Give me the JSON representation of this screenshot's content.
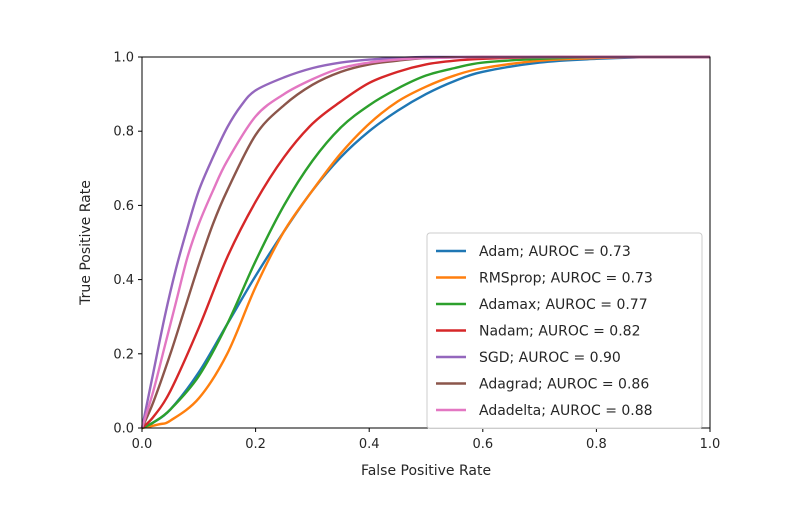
{
  "chart_data": {
    "type": "line",
    "title": "",
    "xlabel": "False Positive Rate",
    "ylabel": "True Positive Rate",
    "xlim": [
      0.0,
      1.0
    ],
    "ylim": [
      0.0,
      1.0
    ],
    "xticks": [
      "0.0",
      "0.2",
      "0.4",
      "0.6",
      "0.8",
      "1.0"
    ],
    "yticks": [
      "0.0",
      "0.2",
      "0.4",
      "0.6",
      "0.8",
      "1.0"
    ],
    "grid": false,
    "legend_position": "lower-right",
    "series": [
      {
        "name": "Adam; AUROC = 0.73",
        "color": "#1f77b4",
        "x": [
          0,
          0.02,
          0.05,
          0.1,
          0.15,
          0.2,
          0.25,
          0.3,
          0.35,
          0.4,
          0.45,
          0.5,
          0.55,
          0.6,
          0.7,
          0.8,
          0.9,
          1.0
        ],
        "y": [
          0,
          0.015,
          0.05,
          0.15,
          0.28,
          0.41,
          0.53,
          0.64,
          0.73,
          0.8,
          0.855,
          0.9,
          0.935,
          0.96,
          0.985,
          0.995,
          1.0,
          1.0
        ]
      },
      {
        "name": "RMSprop; AUROC = 0.73",
        "color": "#ff7f0e",
        "x": [
          0,
          0.03,
          0.05,
          0.1,
          0.15,
          0.2,
          0.25,
          0.3,
          0.35,
          0.4,
          0.45,
          0.5,
          0.55,
          0.6,
          0.7,
          0.8,
          0.9,
          1.0
        ],
        "y": [
          0,
          0.01,
          0.02,
          0.08,
          0.2,
          0.38,
          0.53,
          0.64,
          0.74,
          0.82,
          0.88,
          0.92,
          0.95,
          0.97,
          0.99,
          0.997,
          1.0,
          1.0
        ]
      },
      {
        "name": "Adamax; AUROC = 0.77",
        "color": "#2ca02c",
        "x": [
          0,
          0.02,
          0.05,
          0.1,
          0.15,
          0.2,
          0.25,
          0.3,
          0.35,
          0.4,
          0.45,
          0.5,
          0.55,
          0.6,
          0.7,
          0.8,
          0.9,
          1.0
        ],
        "y": [
          0,
          0.015,
          0.05,
          0.14,
          0.28,
          0.45,
          0.6,
          0.72,
          0.81,
          0.87,
          0.915,
          0.95,
          0.97,
          0.985,
          0.995,
          1.0,
          1.0,
          1.0
        ]
      },
      {
        "name": "Nadam; AUROC = 0.82",
        "color": "#d62728",
        "x": [
          0,
          0.02,
          0.05,
          0.1,
          0.15,
          0.2,
          0.25,
          0.3,
          0.35,
          0.4,
          0.45,
          0.5,
          0.55,
          0.6,
          0.7,
          0.8,
          0.9,
          1.0
        ],
        "y": [
          0,
          0.03,
          0.1,
          0.27,
          0.46,
          0.61,
          0.73,
          0.82,
          0.88,
          0.93,
          0.96,
          0.98,
          0.99,
          0.995,
          1.0,
          1.0,
          1.0,
          1.0
        ]
      },
      {
        "name": "SGD; AUROC = 0.90",
        "color": "#9467bd",
        "x": [
          0,
          0.02,
          0.04,
          0.06,
          0.08,
          0.1,
          0.125,
          0.15,
          0.175,
          0.2,
          0.25,
          0.3,
          0.35,
          0.4,
          0.45,
          0.5,
          0.6,
          0.8,
          1.0
        ],
        "y": [
          0,
          0.15,
          0.3,
          0.43,
          0.54,
          0.64,
          0.73,
          0.81,
          0.87,
          0.91,
          0.945,
          0.97,
          0.985,
          0.993,
          0.997,
          1.0,
          1.0,
          1.0,
          1.0
        ]
      },
      {
        "name": "Adagrad; AUROC = 0.86",
        "color": "#8c564b",
        "x": [
          0,
          0.02,
          0.05,
          0.075,
          0.1,
          0.125,
          0.15,
          0.2,
          0.25,
          0.3,
          0.35,
          0.4,
          0.45,
          0.5,
          0.6,
          0.8,
          1.0
        ],
        "y": [
          0,
          0.07,
          0.2,
          0.32,
          0.44,
          0.55,
          0.64,
          0.79,
          0.87,
          0.925,
          0.96,
          0.98,
          0.99,
          0.997,
          1.0,
          1.0,
          1.0
        ]
      },
      {
        "name": "Adadelta; AUROC = 0.88",
        "color": "#e377c2",
        "x": [
          0,
          0.02,
          0.04,
          0.06,
          0.08,
          0.1,
          0.125,
          0.15,
          0.2,
          0.25,
          0.3,
          0.35,
          0.4,
          0.45,
          0.5,
          0.6,
          0.8,
          1.0
        ],
        "y": [
          0,
          0.1,
          0.22,
          0.34,
          0.46,
          0.55,
          0.64,
          0.72,
          0.84,
          0.9,
          0.94,
          0.97,
          0.985,
          0.993,
          0.997,
          1.0,
          1.0,
          1.0
        ]
      }
    ]
  }
}
